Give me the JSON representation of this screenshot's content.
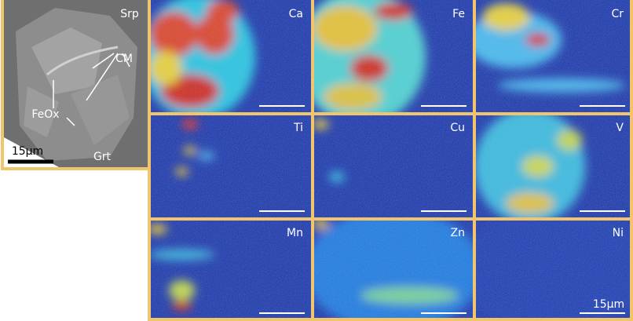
{
  "sem_image": {
    "labels": [
      "Srp",
      "CM",
      "FeOx",
      "Grt"
    ],
    "scale_bar": "15µm"
  },
  "maps": [
    {
      "element": "Ca"
    },
    {
      "element": "Fe"
    },
    {
      "element": "Cr"
    },
    {
      "element": "Ti"
    },
    {
      "element": "Cu"
    },
    {
      "element": "V"
    },
    {
      "element": "Mn"
    },
    {
      "element": "Zn"
    },
    {
      "element": "Ni"
    }
  ],
  "scale_bar": "15µm"
}
